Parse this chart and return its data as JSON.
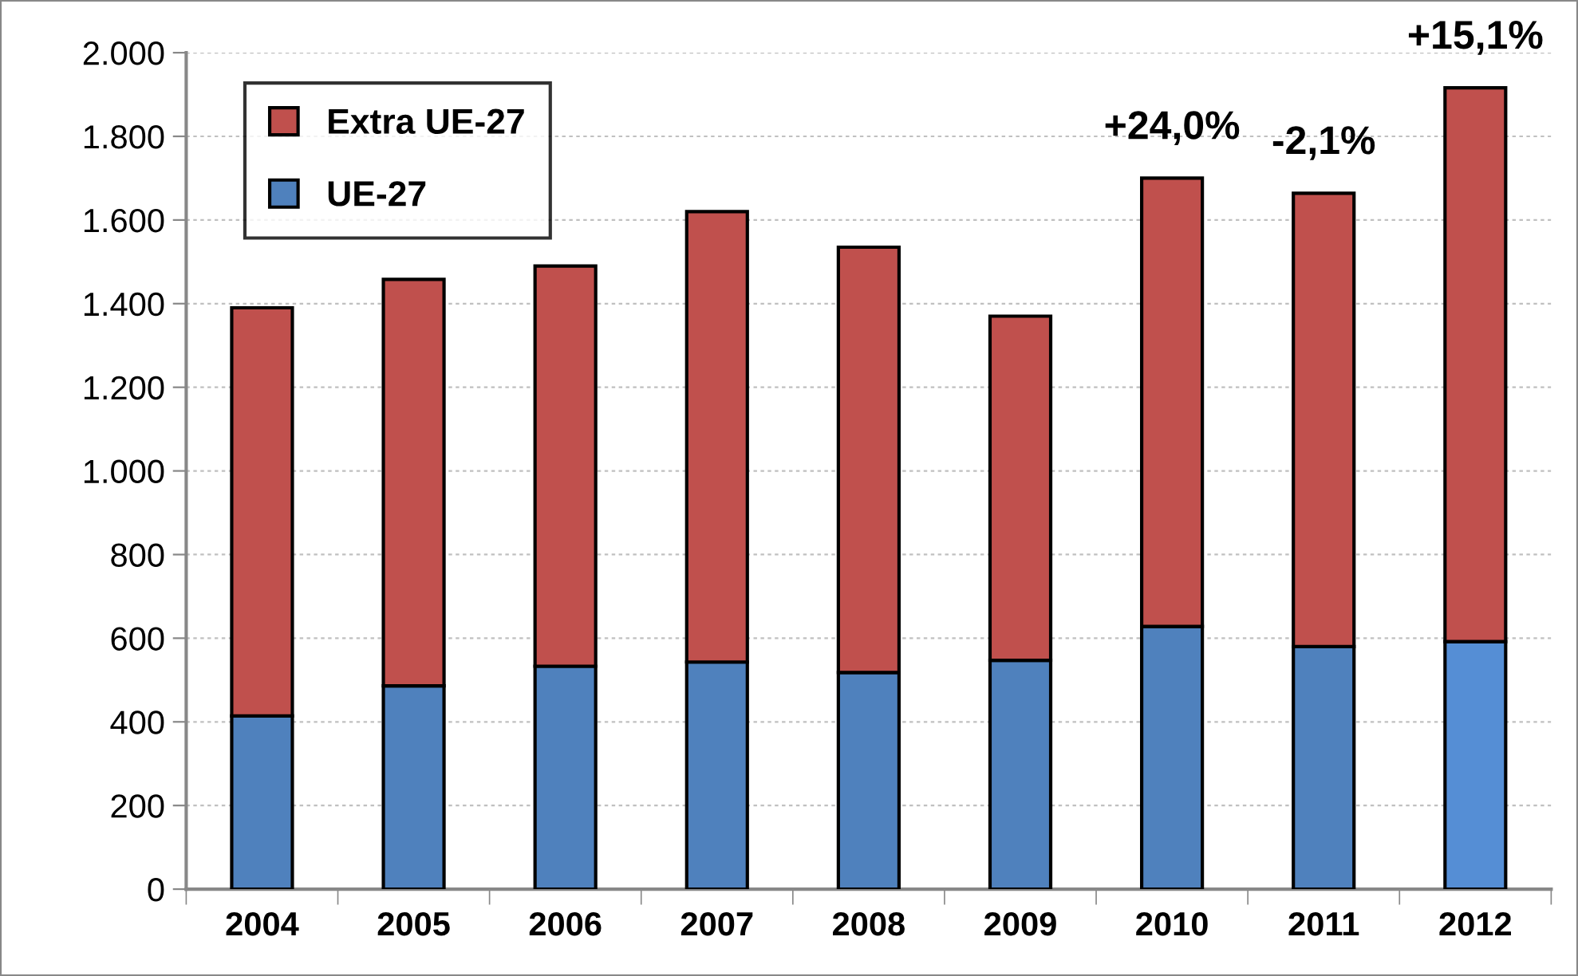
{
  "chart_data": {
    "type": "bar",
    "stacked": true,
    "categories": [
      "2004",
      "2005",
      "2006",
      "2007",
      "2008",
      "2009",
      "2010",
      "2011",
      "2012"
    ],
    "series": [
      {
        "name": "UE-27",
        "color": "#4f81bd",
        "colors": [
          "#4f81bd",
          "#4f81bd",
          "#4f81bd",
          "#4f81bd",
          "#4f81bd",
          "#4f81bd",
          "#4f81bd",
          "#4f81bd",
          "#558ed5"
        ],
        "values": [
          414,
          486,
          533,
          543,
          518,
          547,
          628,
          580,
          592
        ]
      },
      {
        "name": "Extra UE-27",
        "color": "#c0504d",
        "values": [
          976,
          972,
          957,
          1077,
          1017,
          823,
          1072,
          1084,
          1324
        ]
      }
    ],
    "ylim": [
      0,
      2000
    ],
    "yticks": [
      {
        "value": 0,
        "label": "0"
      },
      {
        "value": 200,
        "label": "200"
      },
      {
        "value": 400,
        "label": "400"
      },
      {
        "value": 600,
        "label": "600"
      },
      {
        "value": 800,
        "label": "800"
      },
      {
        "value": 1000,
        "label": "1.000"
      },
      {
        "value": 1200,
        "label": "1.200"
      },
      {
        "value": 1400,
        "label": "1.400"
      },
      {
        "value": 1600,
        "label": "1.600"
      },
      {
        "value": 1800,
        "label": "1.800"
      },
      {
        "value": 2000,
        "label": "2.000"
      }
    ],
    "grid": "y",
    "legend": "top left",
    "annotations": [
      {
        "text": "+24,0%",
        "x": "2010",
        "y": 1700
      },
      {
        "text": "-2,1%",
        "x": "2011",
        "y": 1664
      },
      {
        "text": "+15,1%",
        "x": "2012",
        "y": 1916
      }
    ]
  }
}
